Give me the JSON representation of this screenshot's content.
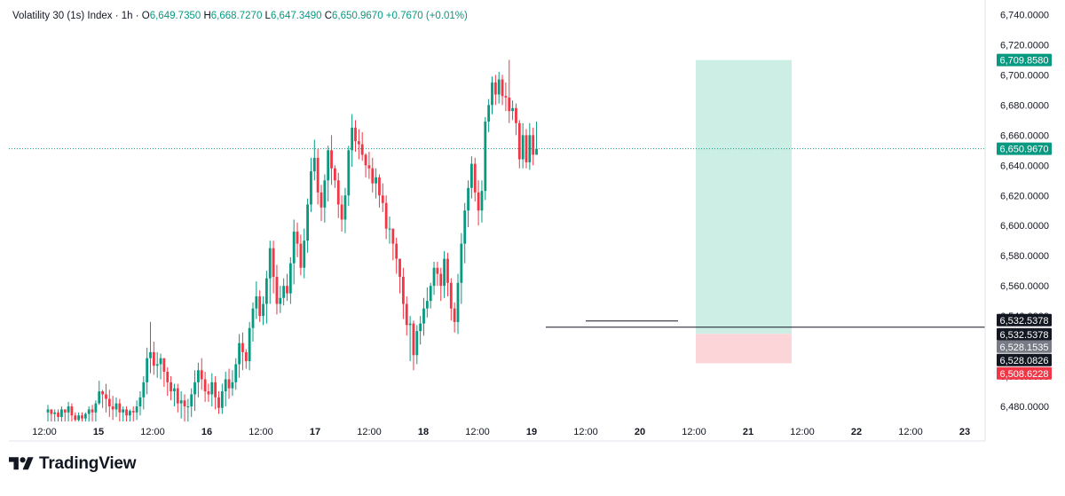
{
  "legend": {
    "symbol": "Volatility 30 (1s) Index · 1h ·",
    "o_label": "O",
    "o_value": "6,649.7350",
    "h_label": "H",
    "h_value": "6,668.7270",
    "l_label": "L",
    "l_value": "6,647.3490",
    "c_label": "C",
    "c_value": "6,650.9670",
    "change": "+0.7670 (+0.01%)"
  },
  "brand": {
    "name": "TradingView"
  },
  "colors": {
    "up": "#089981",
    "down": "#f23645",
    "grid": "#f0f3fa",
    "text": "#131722",
    "profit_zone": "#cdeee4",
    "loss_zone": "#fcd5d9"
  },
  "chart_data": {
    "type": "candlestick",
    "title": "Volatility 30 (1s) Index · 1h",
    "ylim": [
      6470,
      6745
    ],
    "y_ticks": [
      6480,
      6500,
      6520,
      6540,
      6560,
      6580,
      6600,
      6620,
      6640,
      6660,
      6680,
      6700,
      6720,
      6740
    ],
    "y_tick_labels": [
      "6,480.0000",
      "6,500.0000",
      "6,520.0000",
      "6,540.0000",
      "6,560.0000",
      "6,580.0000",
      "6,600.0000",
      "6,620.0000",
      "6,640.0000",
      "6,660.0000",
      "6,680.0000",
      "6,700.0000",
      "6,720.0000",
      "6,740.0000"
    ],
    "x_tick_labels": [
      "12:00",
      "15",
      "12:00",
      "16",
      "12:00",
      "17",
      "12:00",
      "18",
      "12:00",
      "19",
      "12:00",
      "20",
      "12:00",
      "21",
      "12:00",
      "22",
      "12:00",
      "23"
    ],
    "x_bold_labels": [
      "15",
      "16",
      "17",
      "18",
      "19",
      "20",
      "21",
      "22",
      "23"
    ],
    "current_price": 6650.967,
    "levels": [
      {
        "name": "target",
        "value": 6709.858,
        "label": "6,709.8580"
      },
      {
        "name": "current",
        "value": 6650.967,
        "label": "6,650.9670"
      },
      {
        "name": "horizontal-line-1",
        "value": 6532.5378,
        "label": "6,532.5378"
      },
      {
        "name": "horizontal-line-2",
        "value": 6532.5378,
        "label": "6,532.5378"
      },
      {
        "name": "entry",
        "value": 6528.1535,
        "label": "6,528.1535"
      },
      {
        "name": "support",
        "value": 6528.0826,
        "label": "6,528.0826"
      },
      {
        "name": "stop",
        "value": 6508.6228,
        "label": "6,508.6228"
      }
    ],
    "closes": [
      6478,
      6475,
      6476,
      6473,
      6478,
      6476,
      6480,
      6474,
      6471,
      6474,
      6472,
      6475,
      6478,
      6476,
      6482,
      6490,
      6488,
      6485,
      6480,
      6478,
      6482,
      6476,
      6478,
      6474,
      6477,
      6476,
      6480,
      6486,
      6496,
      6512,
      6516,
      6507,
      6508,
      6512,
      6503,
      6496,
      6490,
      6492,
      6482,
      6484,
      6480,
      6480,
      6488,
      6496,
      6504,
      6498,
      6490,
      6488,
      6496,
      6486,
      6479,
      6490,
      6498,
      6492,
      6496,
      6508,
      6522,
      6516,
      6510,
      6532,
      6545,
      6553,
      6540,
      6548,
      6565,
      6585,
      6566,
      6548,
      6552,
      6560,
      6555,
      6575,
      6596,
      6588,
      6572,
      6590,
      6614,
      6636,
      6645,
      6622,
      6612,
      6630,
      6650,
      6638,
      6630,
      6614,
      6604,
      6620,
      6650,
      6665,
      6656,
      6654,
      6647,
      6640,
      6638,
      6628,
      6632,
      6620,
      6615,
      6598,
      6598,
      6588,
      6578,
      6566,
      6548,
      6534,
      6535,
      6514,
      6530,
      6535,
      6545,
      6550,
      6560,
      6572,
      6568,
      6560,
      6578,
      6562,
      6545,
      6536,
      6562,
      6588,
      6610,
      6625,
      6641,
      6622,
      6610,
      6623,
      6669,
      6680,
      6695,
      6687,
      6697,
      6686,
      6685,
      6676,
      6678,
      6668,
      6644,
      6660,
      6642,
      6660,
      6647,
      6651
    ],
    "lows": [
      6470,
      6470,
      6470,
      6470,
      6470,
      6470,
      6470,
      6470,
      6470,
      6470,
      6470,
      6470,
      6470,
      6470,
      6470,
      6481,
      6479,
      6476,
      6473,
      6471,
      6473,
      6470,
      6470,
      6470,
      6470,
      6470,
      6471,
      6474,
      6478,
      6488,
      6502,
      6501,
      6499,
      6498,
      6493,
      6487,
      6484,
      6480,
      6476,
      6472,
      6470,
      6470,
      6473,
      6477,
      6486,
      6491,
      6483,
      6483,
      6480,
      6478,
      6475,
      6475,
      6480,
      6485,
      6487,
      6491,
      6499,
      6504,
      6505,
      6504,
      6523,
      6538,
      6536,
      6534,
      6535,
      6548,
      6555,
      6541,
      6542,
      6547,
      6550,
      6548,
      6561,
      6579,
      6567,
      6565,
      6582,
      6609,
      6630,
      6614,
      6603,
      6602,
      6616,
      6627,
      6625,
      6605,
      6596,
      6595,
      6613,
      6639,
      6649,
      6644,
      6643,
      6632,
      6631,
      6622,
      6618,
      6612,
      6609,
      6591,
      6588,
      6577,
      6568,
      6555,
      6538,
      6527,
      6510,
      6504,
      6508,
      6521,
      6527,
      6539,
      6545,
      6554,
      6560,
      6550,
      6552,
      6553,
      6537,
      6529,
      6528,
      6548,
      6575,
      6599,
      6618,
      6616,
      6600,
      6602,
      6617,
      6662,
      6674,
      6680,
      6681,
      6680,
      6676,
      6668,
      6670,
      6660,
      6638,
      6638,
      6638,
      6637,
      6640,
      6647
    ],
    "highs": [
      6481,
      6478,
      6478,
      6478,
      6480,
      6478,
      6483,
      6482,
      6476,
      6476,
      6476,
      6476,
      6480,
      6481,
      6484,
      6497,
      6491,
      6495,
      6491,
      6487,
      6486,
      6485,
      6480,
      6480,
      6478,
      6480,
      6484,
      6490,
      6500,
      6519,
      6536,
      6523,
      6516,
      6515,
      6512,
      6506,
      6500,
      6495,
      6495,
      6490,
      6488,
      6485,
      6492,
      6504,
      6509,
      6512,
      6503,
      6495,
      6502,
      6500,
      6490,
      6495,
      6503,
      6505,
      6504,
      6512,
      6528,
      6529,
      6518,
      6536,
      6549,
      6563,
      6557,
      6553,
      6570,
      6590,
      6590,
      6574,
      6560,
      6565,
      6568,
      6579,
      6604,
      6602,
      6594,
      6598,
      6618,
      6645,
      6657,
      6651,
      6627,
      6634,
      6653,
      6660,
      6640,
      6635,
      6620,
      6625,
      6653,
      6674,
      6670,
      6664,
      6662,
      6648,
      6649,
      6645,
      6638,
      6634,
      6628,
      6620,
      6606,
      6598,
      6592,
      6578,
      6572,
      6553,
      6540,
      6537,
      6534,
      6540,
      6552,
      6559,
      6562,
      6576,
      6576,
      6572,
      6583,
      6582,
      6565,
      6549,
      6568,
      6595,
      6615,
      6630,
      6646,
      6645,
      6630,
      6630,
      6672,
      6684,
      6699,
      6700,
      6702,
      6700,
      6695,
      6710,
      6683,
      6681,
      6670,
      6668,
      6664,
      6668,
      6665,
      6669
    ]
  }
}
